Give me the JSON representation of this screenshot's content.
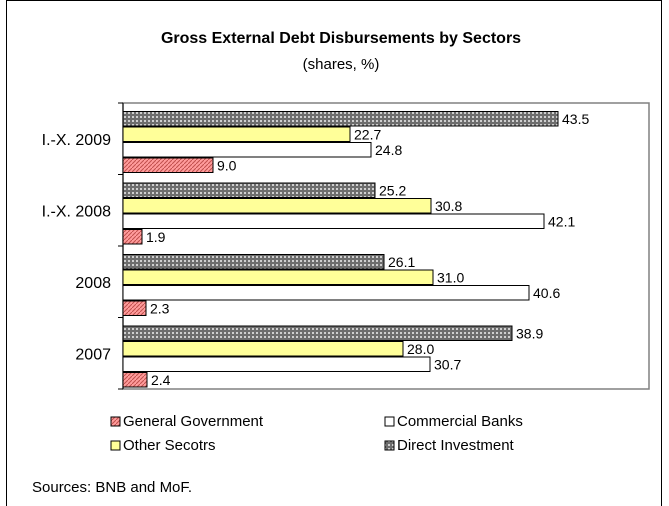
{
  "chart_data": {
    "type": "bar",
    "orientation": "horizontal",
    "title": "Gross External Debt Disbursements by Sectors",
    "subtitle": "(shares, %)",
    "categories": [
      "I.-X. 2009",
      "I.-X. 2008",
      "2008",
      "2007"
    ],
    "series": [
      {
        "name": "Direct Investment",
        "values": [
          43.5,
          25.2,
          26.1,
          38.9
        ],
        "color": "#808080",
        "pattern": "dots"
      },
      {
        "name": "Other Secotrs",
        "values": [
          22.7,
          30.8,
          31.0,
          28.0
        ],
        "color": "#ffff99",
        "pattern": "solid"
      },
      {
        "name": "Commercial Banks",
        "values": [
          24.8,
          42.1,
          40.6,
          30.7
        ],
        "color": "#ffffff",
        "pattern": "solid"
      },
      {
        "name": "General Government",
        "values": [
          9.0,
          1.9,
          2.3,
          2.4
        ],
        "color": "#ff9999",
        "pattern": "hatch"
      }
    ],
    "data_labels": [
      [
        "43.5",
        "25.2",
        "26.1",
        "38.9"
      ],
      [
        "22.7",
        "30.8",
        "31.0",
        "28.0"
      ],
      [
        "24.8",
        "42.1",
        "40.6",
        "30.7"
      ],
      [
        "9.0",
        "1.9",
        "2.3",
        "2.4"
      ]
    ],
    "xlim": [
      0,
      50
    ],
    "grid": false,
    "legend": {
      "placement": "bottom",
      "items": [
        "General Government",
        "Commercial Banks",
        "Other Secotrs",
        "Direct Investment"
      ]
    }
  },
  "source_note": "Sources: BNB and MoF."
}
